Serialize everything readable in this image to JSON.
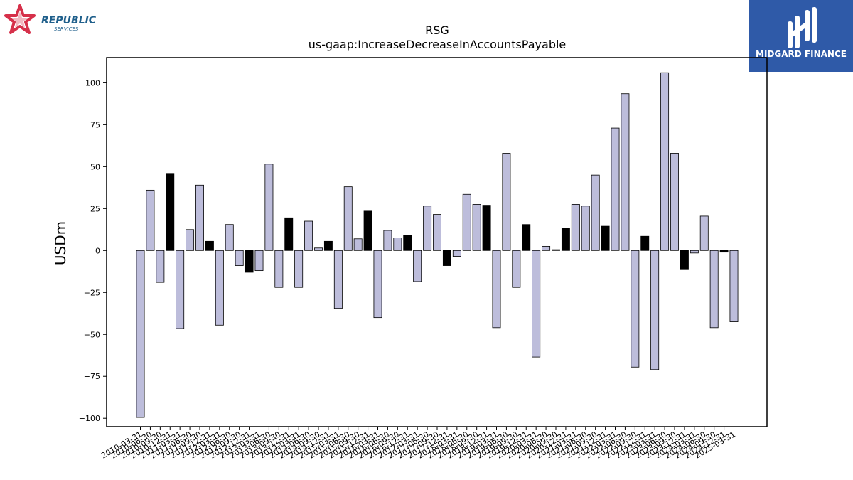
{
  "logos": {
    "left": {
      "name": "republic-services-logo",
      "line1": "REPUBLIC",
      "line2": "SERVICES",
      "colors": {
        "star": "#d6304a",
        "text": "#1f5f8b"
      }
    },
    "right": {
      "name": "midgard-finance-logo",
      "text": "MIDGARD FINANCE",
      "colors": {
        "background": "#2f5aa8",
        "text": "#ffffff"
      }
    }
  },
  "chart_data": {
    "type": "bar",
    "title": "RSG",
    "subtitle": "us-gaap:IncreaseDecreaseInAccountsPayable",
    "xlabel": "",
    "ylabel": "USDm",
    "ylim": [
      -105,
      115
    ],
    "yticks": [
      -100,
      -75,
      -50,
      -25,
      0,
      25,
      50,
      75,
      100
    ],
    "grid": false,
    "legend": "none",
    "colors": {
      "q4": "#000000",
      "other": "#bdbddb",
      "edge": "#000000"
    },
    "categories": [
      "2010-03-31",
      "2010-06-30",
      "2010-09-30",
      "2010-12-31",
      "2011-03-31",
      "2011-06-30",
      "2011-09-30",
      "2011-12-31",
      "2012-03-31",
      "2012-06-30",
      "2012-09-30",
      "2012-12-31",
      "2013-03-31",
      "2013-06-30",
      "2013-09-30",
      "2013-12-31",
      "2014-03-31",
      "2014-06-30",
      "2014-09-30",
      "2014-12-31",
      "2015-03-31",
      "2015-06-30",
      "2015-09-30",
      "2015-12-31",
      "2016-03-31",
      "2016-06-30",
      "2016-09-30",
      "2016-12-31",
      "2017-03-31",
      "2017-06-30",
      "2017-09-30",
      "2017-12-31",
      "2018-03-31",
      "2018-06-30",
      "2018-09-30",
      "2018-12-31",
      "2019-03-31",
      "2019-06-30",
      "2019-09-30",
      "2019-12-31",
      "2020-03-31",
      "2020-06-30",
      "2020-09-30",
      "2020-12-31",
      "2021-03-31",
      "2021-06-30",
      "2021-09-30",
      "2021-12-31",
      "2022-03-31",
      "2022-06-30",
      "2022-09-30",
      "2022-12-31",
      "2023-03-31",
      "2023-06-30",
      "2023-09-30",
      "2023-12-31",
      "2024-03-31",
      "2024-06-30",
      "2024-09-30",
      "2024-12-31",
      "2025-03-31"
    ],
    "values": [
      -99.5,
      36,
      -19,
      46,
      -46.5,
      12.5,
      39,
      5.5,
      -44.5,
      15.5,
      -9,
      -13,
      -12,
      51.5,
      -22,
      19.5,
      -22,
      17.5,
      1.5,
      5.5,
      -34.5,
      38,
      7,
      23.5,
      -40,
      12,
      7.5,
      9,
      -18.5,
      26.5,
      21.5,
      -9,
      -3.5,
      33.5,
      27.5,
      27,
      -46,
      58,
      -22,
      15.5,
      -63.5,
      2.5,
      0.5,
      13.5,
      27.5,
      26.5,
      45,
      14.5,
      73,
      93.5,
      -69.5,
      8.5,
      -71,
      106,
      58,
      -11,
      -1.5,
      20.5,
      -46,
      -1,
      -42.5
    ]
  }
}
